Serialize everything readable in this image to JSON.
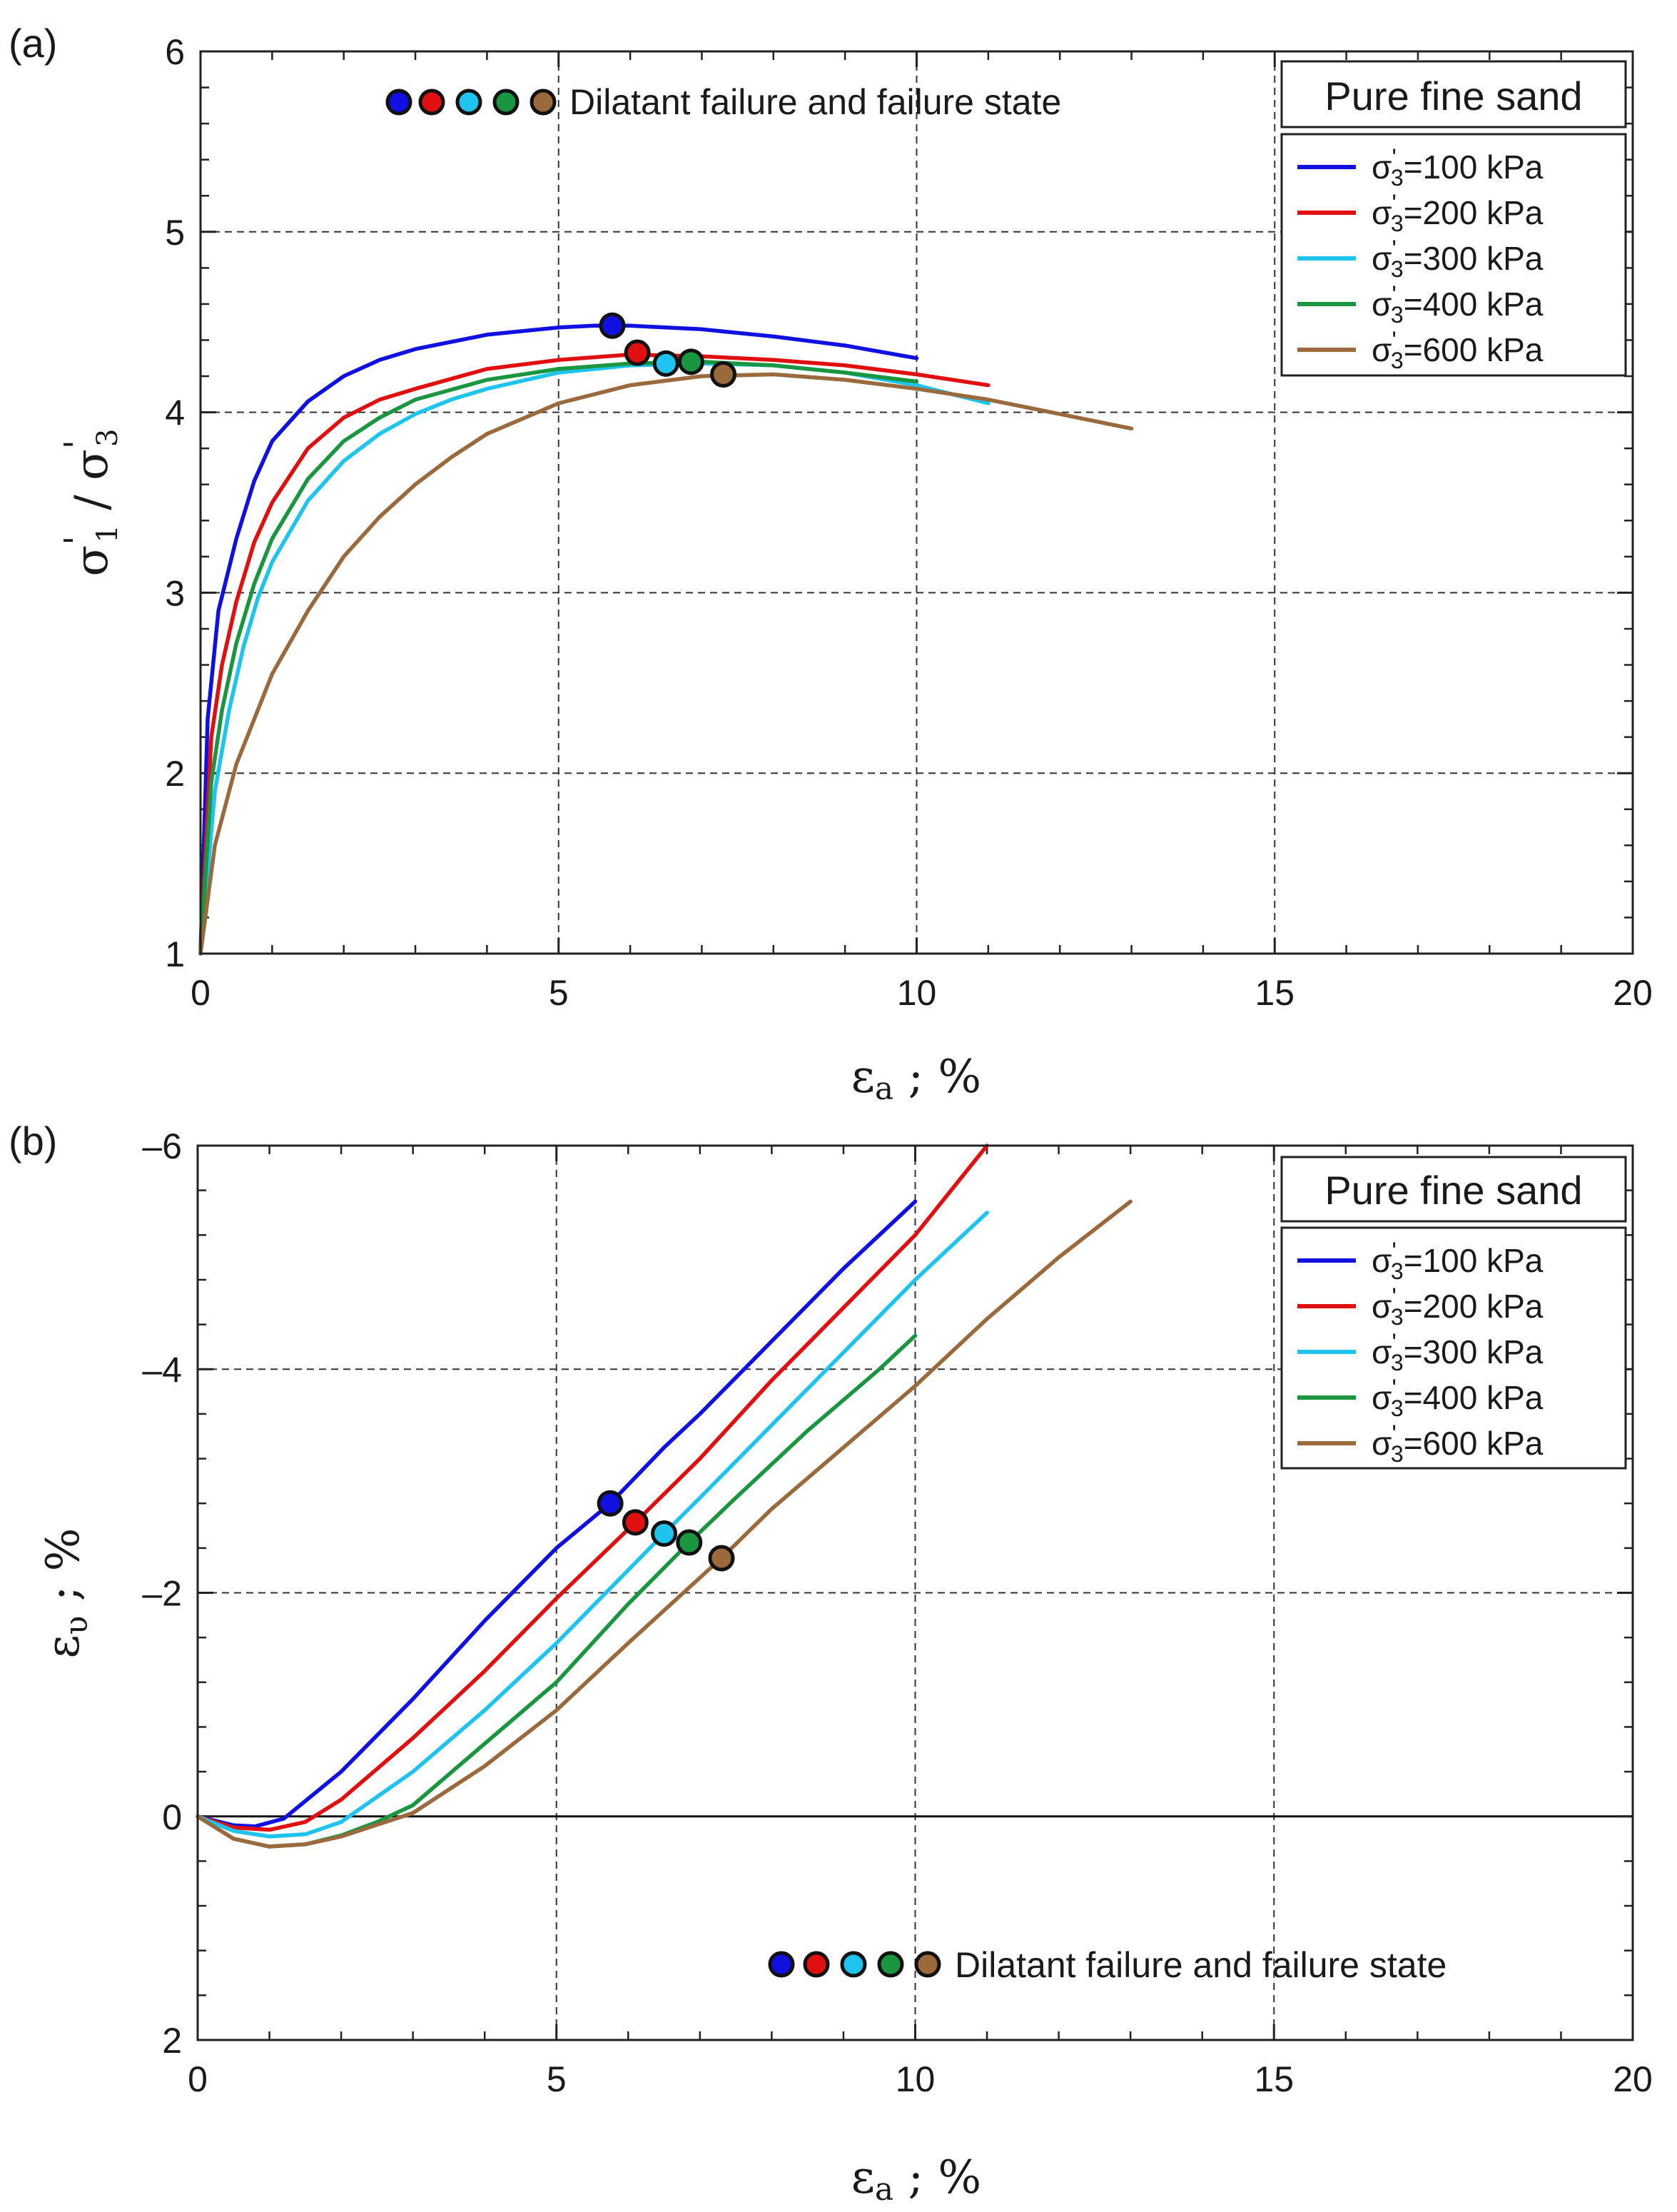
{
  "chart_data": [
    {
      "type": "line",
      "panel_label": "(a)",
      "xlabel_main": "ε",
      "xlabel_sub": "a",
      "xlabel_rest": " ; %",
      "ylabel_s1": "σ",
      "ylabel_sub1": "1",
      "ylabel_sep": " / σ",
      "ylabel_sub3": "3",
      "ylabel_prime": "'",
      "xlim": [
        0,
        20
      ],
      "ylim": [
        1,
        6
      ],
      "y_reversed": false,
      "x_ticks": [
        "0",
        "5",
        "10",
        "15",
        "20"
      ],
      "y_ticks": [
        "1",
        "2",
        "3",
        "4",
        "5",
        "6"
      ],
      "grid": "dashed at major ticks",
      "legend_title": "Pure fine sand",
      "legend_position": "top-right",
      "annotation": "Dilatant failure and failure state",
      "annotation_position": "top-center",
      "series": [
        {
          "name": "σ'₃=100 kPa",
          "label_main": "σ",
          "label_sub": "3",
          "label_prime": "'",
          "label_rest": "=100 kPa",
          "color": "#1010e0",
          "x": [
            0,
            0.1,
            0.25,
            0.5,
            0.75,
            1,
            1.5,
            2,
            2.5,
            3,
            4,
            5,
            5.5,
            6,
            7,
            8,
            9,
            10
          ],
          "y": [
            1.0,
            2.3,
            2.9,
            3.3,
            3.62,
            3.84,
            4.06,
            4.2,
            4.29,
            4.35,
            4.43,
            4.47,
            4.48,
            4.48,
            4.46,
            4.42,
            4.37,
            4.3
          ],
          "failure_point": {
            "x": 5.75,
            "y": 4.48
          }
        },
        {
          "name": "σ'₃=200 kPa",
          "label_main": "σ",
          "label_sub": "3",
          "label_prime": "'",
          "label_rest": "=200 kPa",
          "color": "#e01010",
          "x": [
            0,
            0.15,
            0.3,
            0.5,
            0.75,
            1,
            1.5,
            2,
            2.5,
            3,
            4,
            5,
            6,
            7,
            8,
            9,
            10,
            11
          ],
          "y": [
            1.0,
            2.2,
            2.6,
            2.95,
            3.28,
            3.5,
            3.8,
            3.97,
            4.07,
            4.13,
            4.24,
            4.29,
            4.32,
            4.31,
            4.29,
            4.26,
            4.21,
            4.15
          ],
          "failure_point": {
            "x": 6.1,
            "y": 4.33
          }
        },
        {
          "name": "σ'₃=300 kPa",
          "label_main": "σ",
          "label_sub": "3",
          "label_prime": "'",
          "label_rest": "=300 kPa",
          "color": "#1ec4ee",
          "x": [
            0,
            0.2,
            0.4,
            0.6,
            0.8,
            1,
            1.5,
            2,
            2.5,
            3,
            3.5,
            4,
            5,
            6,
            7,
            8,
            9,
            10,
            11
          ],
          "y": [
            1.0,
            1.9,
            2.35,
            2.7,
            2.97,
            3.17,
            3.51,
            3.73,
            3.88,
            3.99,
            4.07,
            4.13,
            4.22,
            4.26,
            4.27,
            4.26,
            4.22,
            4.15,
            4.05
          ],
          "failure_point": {
            "x": 6.5,
            "y": 4.27
          }
        },
        {
          "name": "σ'₃=400 kPa",
          "label_main": "σ",
          "label_sub": "3",
          "label_prime": "'",
          "label_rest": "=400 kPa",
          "color": "#1a9640",
          "x": [
            0,
            0.15,
            0.3,
            0.5,
            0.75,
            1,
            1.5,
            2,
            2.5,
            3,
            4,
            5,
            6,
            7,
            8,
            9,
            10
          ],
          "y": [
            1.0,
            1.95,
            2.35,
            2.72,
            3.05,
            3.3,
            3.63,
            3.84,
            3.97,
            4.07,
            4.18,
            4.24,
            4.27,
            4.28,
            4.26,
            4.22,
            4.17
          ],
          "failure_point": {
            "x": 6.85,
            "y": 4.28
          }
        },
        {
          "name": "σ'₃=600 kPa",
          "label_main": "σ",
          "label_sub": "3",
          "label_prime": "'",
          "label_rest": "=600 kPa",
          "color": "#9a6a3c",
          "x": [
            0,
            0.2,
            0.5,
            1,
            1.5,
            2,
            2.5,
            3,
            3.5,
            4,
            5,
            6,
            7,
            8,
            9,
            10,
            11,
            12,
            13
          ],
          "y": [
            1.0,
            1.6,
            2.05,
            2.55,
            2.9,
            3.2,
            3.42,
            3.6,
            3.75,
            3.88,
            4.05,
            4.15,
            4.2,
            4.21,
            4.18,
            4.13,
            4.07,
            3.99,
            3.91
          ],
          "failure_point": {
            "x": 7.3,
            "y": 4.21
          }
        }
      ]
    },
    {
      "type": "line",
      "panel_label": "(b)",
      "xlabel_main": "ε",
      "xlabel_sub": "a",
      "xlabel_rest": " ; %",
      "ylabel_main": "ε",
      "ylabel_sub": "υ",
      "ylabel_rest": " ; %",
      "xlim": [
        0,
        20
      ],
      "ylim": [
        2,
        -6
      ],
      "y_reversed": true,
      "x_ticks": [
        "0",
        "5",
        "10",
        "15",
        "20"
      ],
      "y_ticks": [
        "2",
        "0",
        "–2",
        "–4",
        "–6"
      ],
      "grid": "dashed at major ticks, solid line at 0",
      "legend_title": "Pure fine sand",
      "legend_position": "top-right",
      "annotation": "Dilatant failure and failure state",
      "annotation_position": "bottom-right",
      "series": [
        {
          "name": "σ'₃=100 kPa",
          "label_main": "σ",
          "label_sub": "3",
          "label_prime": "'",
          "label_rest": "=100 kPa",
          "color": "#1010e0",
          "x": [
            0,
            0.5,
            0.8,
            1.2,
            2,
            3,
            4,
            5,
            5.75,
            6.5,
            7,
            8,
            9,
            10
          ],
          "y": [
            0,
            0.08,
            0.09,
            0.02,
            -0.4,
            -1.05,
            -1.75,
            -2.4,
            -2.8,
            -3.3,
            -3.6,
            -4.25,
            -4.9,
            -5.5
          ],
          "failure_point": {
            "x": 5.75,
            "y": -2.8
          }
        },
        {
          "name": "σ'₃=200 kPa",
          "label_main": "σ",
          "label_sub": "3",
          "label_prime": "'",
          "label_rest": "=200 kPa",
          "color": "#e01010",
          "x": [
            0,
            0.5,
            1,
            1.5,
            2,
            3,
            4,
            5,
            6.1,
            7,
            8,
            9,
            10,
            11
          ],
          "y": [
            0,
            0.1,
            0.12,
            0.05,
            -0.15,
            -0.7,
            -1.3,
            -1.95,
            -2.63,
            -3.2,
            -3.9,
            -4.55,
            -5.2,
            -6.0
          ],
          "failure_point": {
            "x": 6.1,
            "y": -2.63
          }
        },
        {
          "name": "σ'₃=300 kPa",
          "label_main": "σ",
          "label_sub": "3",
          "label_prime": "'",
          "label_rest": "=300 kPa",
          "color": "#1ec4ee",
          "x": [
            0,
            0.5,
            1,
            1.5,
            2,
            3,
            4,
            5,
            6.5,
            7,
            8,
            9,
            10,
            11
          ],
          "y": [
            0,
            0.13,
            0.18,
            0.16,
            0.05,
            -0.4,
            -0.95,
            -1.55,
            -2.53,
            -2.85,
            -3.5,
            -4.15,
            -4.8,
            -5.4
          ],
          "failure_point": {
            "x": 6.5,
            "y": -2.53
          }
        },
        {
          "name": "σ'₃=400 kPa",
          "label_main": "σ",
          "label_sub": "3",
          "label_prime": "'",
          "label_rest": "=400 kPa",
          "color": "#1a9640",
          "x": [
            0,
            0.5,
            1,
            1.5,
            2,
            2.5,
            3,
            4,
            5,
            6,
            6.85,
            7.5,
            8.5,
            9.5,
            10
          ],
          "y": [
            0,
            0.2,
            0.27,
            0.25,
            0.17,
            0.05,
            -0.1,
            -0.65,
            -1.2,
            -1.9,
            -2.45,
            -2.85,
            -3.45,
            -4.0,
            -4.3
          ],
          "failure_point": {
            "x": 6.85,
            "y": -2.45
          }
        },
        {
          "name": "σ'₃=600 kPa",
          "label_main": "σ",
          "label_sub": "3",
          "label_prime": "'",
          "label_rest": "=600 kPa",
          "color": "#9a6a3c",
          "x": [
            0,
            0.5,
            1,
            1.5,
            2,
            3,
            4,
            5,
            6,
            7.3,
            8,
            9,
            10,
            11,
            12,
            13
          ],
          "y": [
            0,
            0.2,
            0.27,
            0.25,
            0.18,
            -0.03,
            -0.45,
            -0.95,
            -1.55,
            -2.31,
            -2.75,
            -3.3,
            -3.85,
            -4.45,
            -5.0,
            -5.5
          ],
          "failure_point": {
            "x": 7.3,
            "y": -2.31
          }
        }
      ]
    }
  ]
}
